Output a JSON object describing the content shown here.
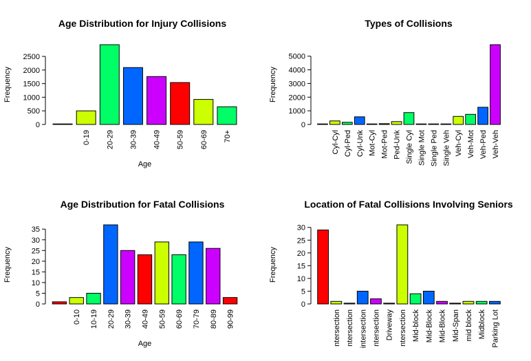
{
  "palette": [
    "#FF0000",
    "#CCFF00",
    "#00FF66",
    "#0066FF",
    "#CC00FF"
  ],
  "chart_data": [
    {
      "type": "bar",
      "title": "Age Distribution for Injury Collisions",
      "xlabel": "Age",
      "ylabel": "Frequency",
      "categories": [
        "",
        "0-19",
        "20-29",
        "30-39",
        "40-49",
        "50-59",
        "60-69",
        "70+"
      ],
      "values": [
        5,
        500,
        2930,
        2090,
        1760,
        1540,
        920,
        650
      ],
      "ylim": [
        0,
        2930
      ],
      "yticks": [
        0,
        500,
        1000,
        1500,
        2000,
        2500
      ],
      "color_offset": 0
    },
    {
      "type": "bar",
      "title": "Types of Collisions",
      "xlabel": "",
      "ylabel": "Frequency",
      "categories": [
        "",
        "Cyl-Cyl",
        "Cyl-Ped",
        "Cyl-Unk",
        "Mot-Cyl",
        "Mot-Ped",
        "Ped-Unk",
        "Single Cyl",
        "Single Mot",
        "Single Ped",
        "Single Veh",
        "Veh-Cyl",
        "Veh-Mot",
        "Veh-Ped",
        "Veh-Veh"
      ],
      "values": [
        5,
        260,
        160,
        560,
        40,
        60,
        210,
        870,
        40,
        40,
        40,
        590,
        740,
        1260,
        5840
      ],
      "ylim": [
        0,
        5840
      ],
      "yticks": [
        0,
        1000,
        2000,
        3000,
        4000,
        5000
      ],
      "color_offset": 0
    },
    {
      "type": "bar",
      "title": "Age Distribution for Fatal Collisions",
      "xlabel": "Age",
      "ylabel": "Frequency",
      "categories": [
        "",
        "0-10",
        "10-19",
        "20-29",
        "30-39",
        "40-49",
        "50-59",
        "60-69",
        "70-79",
        "80-89",
        "90-99"
      ],
      "values": [
        1,
        3,
        5,
        37,
        25,
        23,
        29,
        23,
        29,
        26,
        3
      ],
      "ylim": [
        0,
        37
      ],
      "yticks": [
        0,
        5,
        10,
        15,
        20,
        25,
        30,
        35
      ],
      "color_offset": 0
    },
    {
      "type": "bar",
      "title": "Location of Fatal Collisions Involving Seniors",
      "xlabel": "",
      "ylabel": "Frequency",
      "categories": [
        "",
        "ntersection",
        "ntersection",
        "intersection",
        "ntersection",
        "Driveway",
        "ntersection",
        "Mid-block",
        "Mid-Block",
        "Mid-Block",
        "Mid-Span",
        "mid block",
        "Midblock",
        "Parking Lot"
      ],
      "values": [
        29,
        1,
        0.3,
        5,
        2,
        0.3,
        31,
        4,
        5,
        1,
        0.3,
        1,
        1,
        1
      ],
      "ylim": [
        0,
        31
      ],
      "yticks": [
        0,
        5,
        10,
        15,
        20,
        25,
        30
      ],
      "color_offset": 0
    }
  ]
}
